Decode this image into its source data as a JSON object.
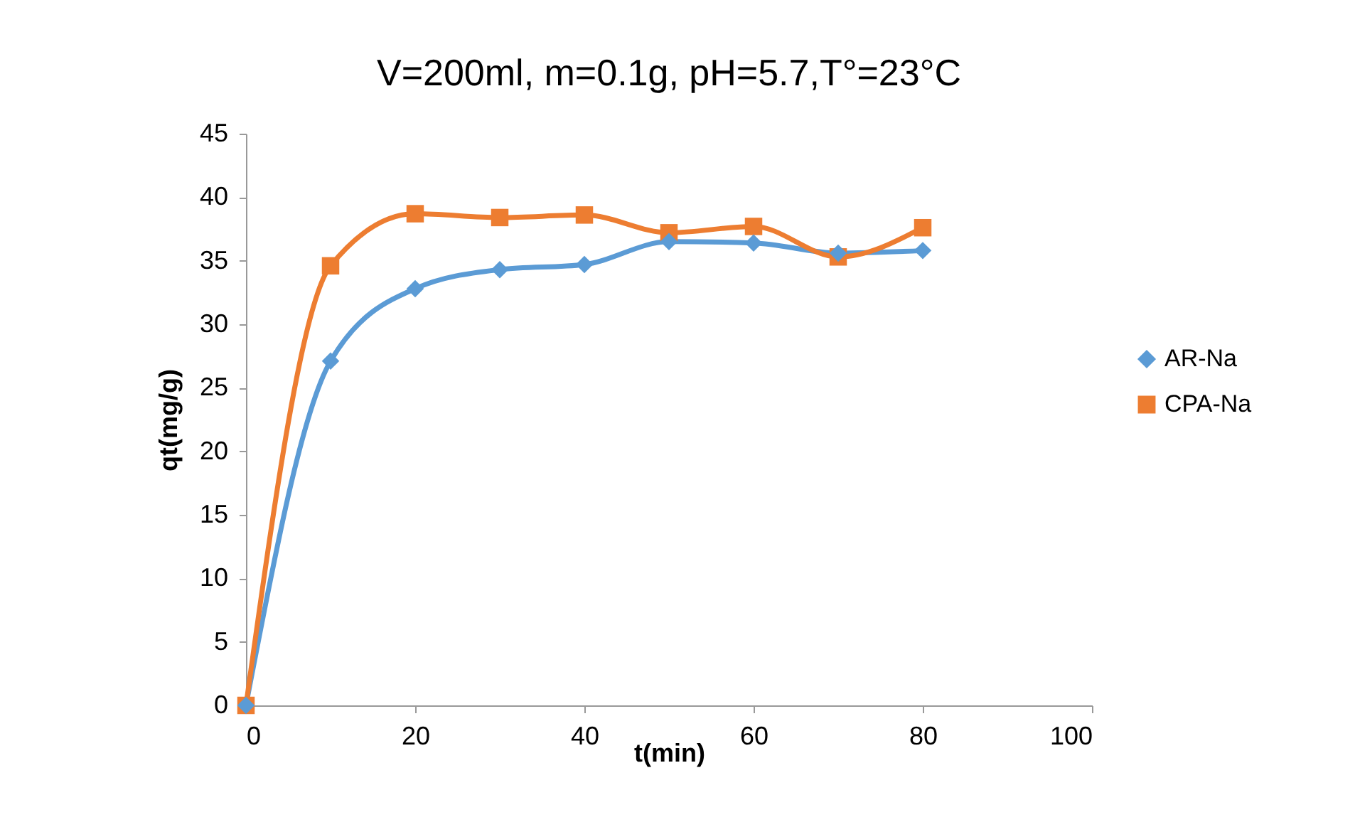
{
  "chart_data": {
    "type": "line",
    "title": "V=200ml, m=0.1g, pH=5.7,T°=23°C",
    "xlabel": "t(min)",
    "ylabel": "qt(mg/g)",
    "x": [
      0,
      10,
      20,
      30,
      40,
      50,
      60,
      70,
      80
    ],
    "series": [
      {
        "name": "AR-Na",
        "color": "#5b9bd5",
        "marker": "diamond",
        "values": [
          0,
          27.1,
          32.8,
          34.3,
          34.7,
          36.5,
          36.4,
          35.6,
          35.8
        ]
      },
      {
        "name": "CPA-Na",
        "color": "#ed7d31",
        "marker": "square",
        "values": [
          0,
          34.6,
          38.7,
          38.4,
          38.6,
          37.2,
          37.7,
          35.3,
          37.6
        ]
      }
    ],
    "xlim": [
      0,
      100
    ],
    "xticks": [
      0,
      20,
      40,
      60,
      80,
      100
    ],
    "ylim": [
      0,
      45
    ],
    "yticks": [
      0,
      5,
      10,
      15,
      20,
      25,
      30,
      35,
      40,
      45
    ],
    "grid": false,
    "legend": "right",
    "line_style": "solid"
  }
}
